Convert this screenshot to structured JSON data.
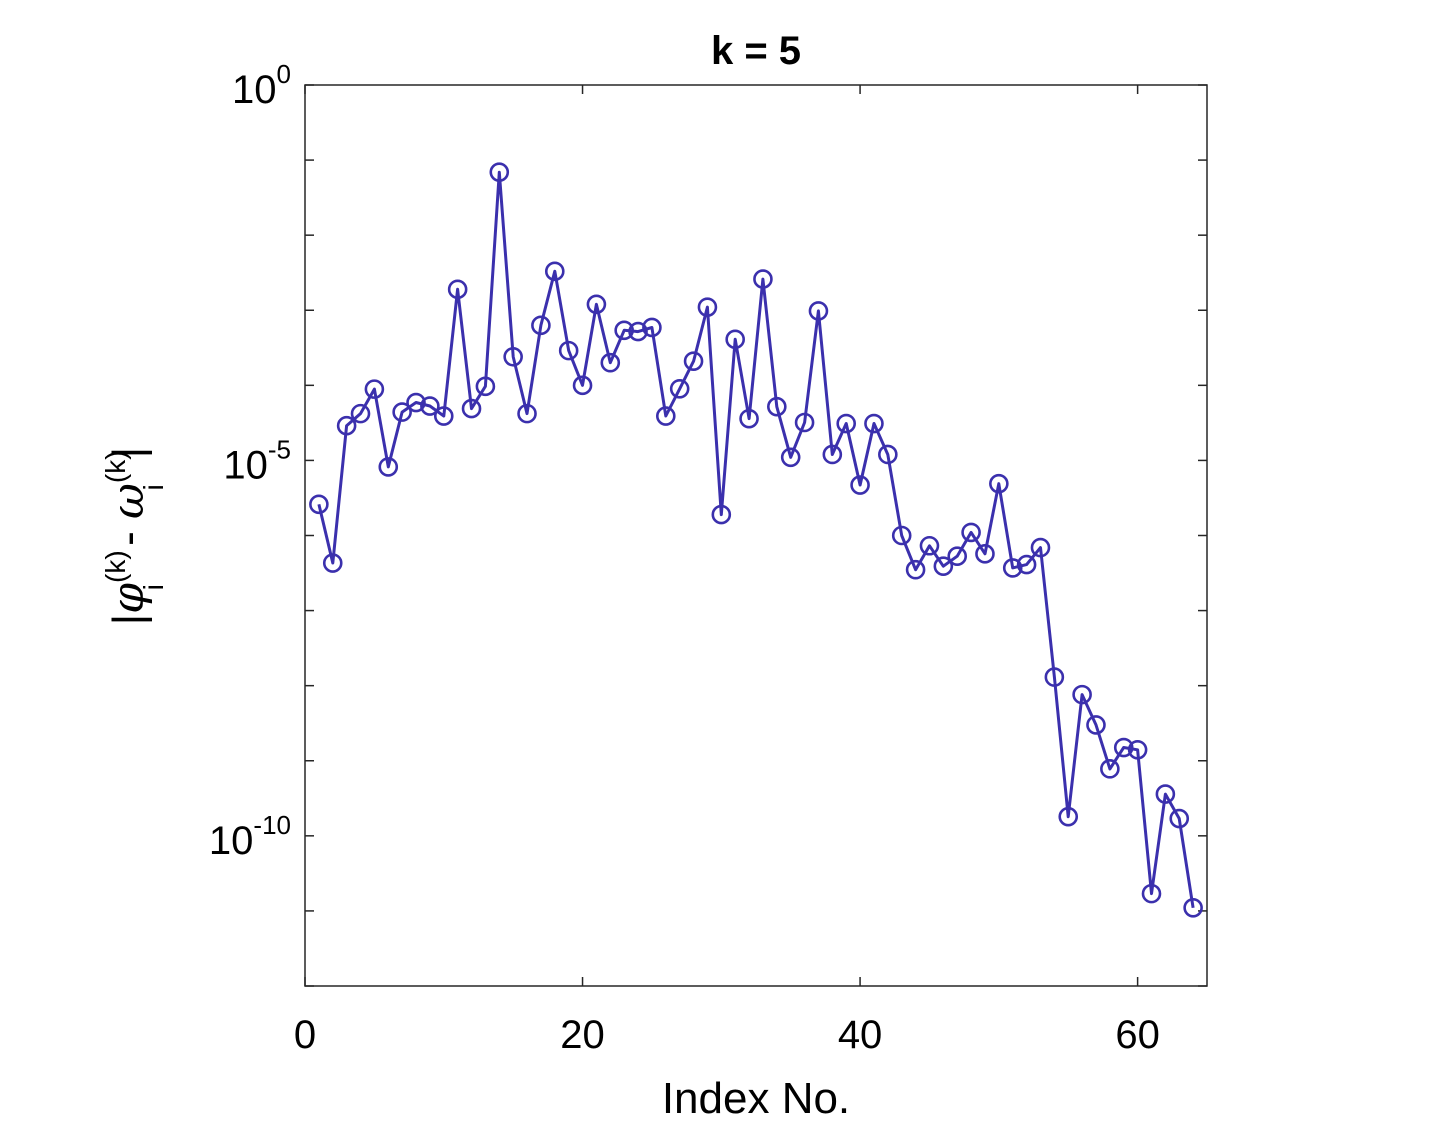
{
  "chart_data": {
    "type": "line",
    "title": "k = 5",
    "xlabel": "Index No.",
    "ylabel": {
      "prefix": "|",
      "phi": "φ",
      "phi_sup": "(k)",
      "phi_sub": "i",
      "minus": " - ",
      "omega": "ω",
      "omega_sup": "(k)",
      "omega_sub": "i",
      "suffix": "|"
    },
    "xlim": [
      0,
      65
    ],
    "ylim": [
      1e-12,
      1
    ],
    "yscale": "log",
    "xticks": [
      0,
      20,
      40,
      60
    ],
    "xtick_labels": [
      "0",
      "20",
      "40",
      "60"
    ],
    "yticks": [
      {
        "value": 1,
        "base": "10",
        "exp": "0"
      },
      {
        "value": 1e-05,
        "base": "10",
        "exp": "-5"
      },
      {
        "value": 1e-10,
        "base": "10",
        "exp": "-10"
      }
    ],
    "grid": false,
    "marker": "circle",
    "color": "#3b30ad",
    "series": [
      {
        "x": [
          1,
          2,
          3,
          4,
          5,
          6,
          7,
          8,
          9,
          10,
          11,
          12,
          13,
          14,
          15,
          16,
          17,
          18,
          19,
          20,
          21,
          22,
          23,
          24,
          25,
          26,
          27,
          28,
          29,
          30,
          31,
          32,
          33,
          34,
          35,
          36,
          37,
          38,
          39,
          40,
          41,
          42,
          43,
          44,
          45,
          46,
          47,
          48,
          49,
          50,
          51,
          52,
          53,
          54,
          55,
          56,
          57,
          58,
          59,
          60,
          61,
          62,
          63,
          64
        ],
        "values": [
          2.6e-06,
          4.3e-07,
          2.9e-05,
          4.2e-05,
          8.9e-05,
          8.2e-06,
          4.4e-05,
          5.9e-05,
          5.3e-05,
          3.9e-05,
          0.0019,
          4.9e-05,
          9.7e-05,
          0.069,
          0.00024,
          4.2e-05,
          0.00063,
          0.0033,
          0.00029,
          0.0001,
          0.0012,
          0.0002,
          0.00054,
          0.00052,
          0.00059,
          3.9e-05,
          9e-05,
          0.00021,
          0.0011,
          1.9e-06,
          0.00041,
          3.6e-05,
          0.0026,
          5.2e-05,
          1.1e-05,
          3.2e-05,
          0.00098,
          1.2e-05,
          3.1e-05,
          4.7e-06,
          3.1e-05,
          1.2e-05,
          1e-06,
          3.5e-07,
          7.3e-07,
          3.9e-07,
          5.3e-07,
          1.1e-06,
          5.7e-07,
          4.9e-06,
          3.7e-07,
          4.1e-07,
          6.9e-07,
          1.3e-08,
          1.8e-10,
          7.6e-09,
          3e-09,
          7.8e-10,
          1.5e-09,
          1.4e-09,
          1.7e-11,
          3.6e-10,
          1.7e-10,
          1.1e-11
        ]
      }
    ]
  }
}
